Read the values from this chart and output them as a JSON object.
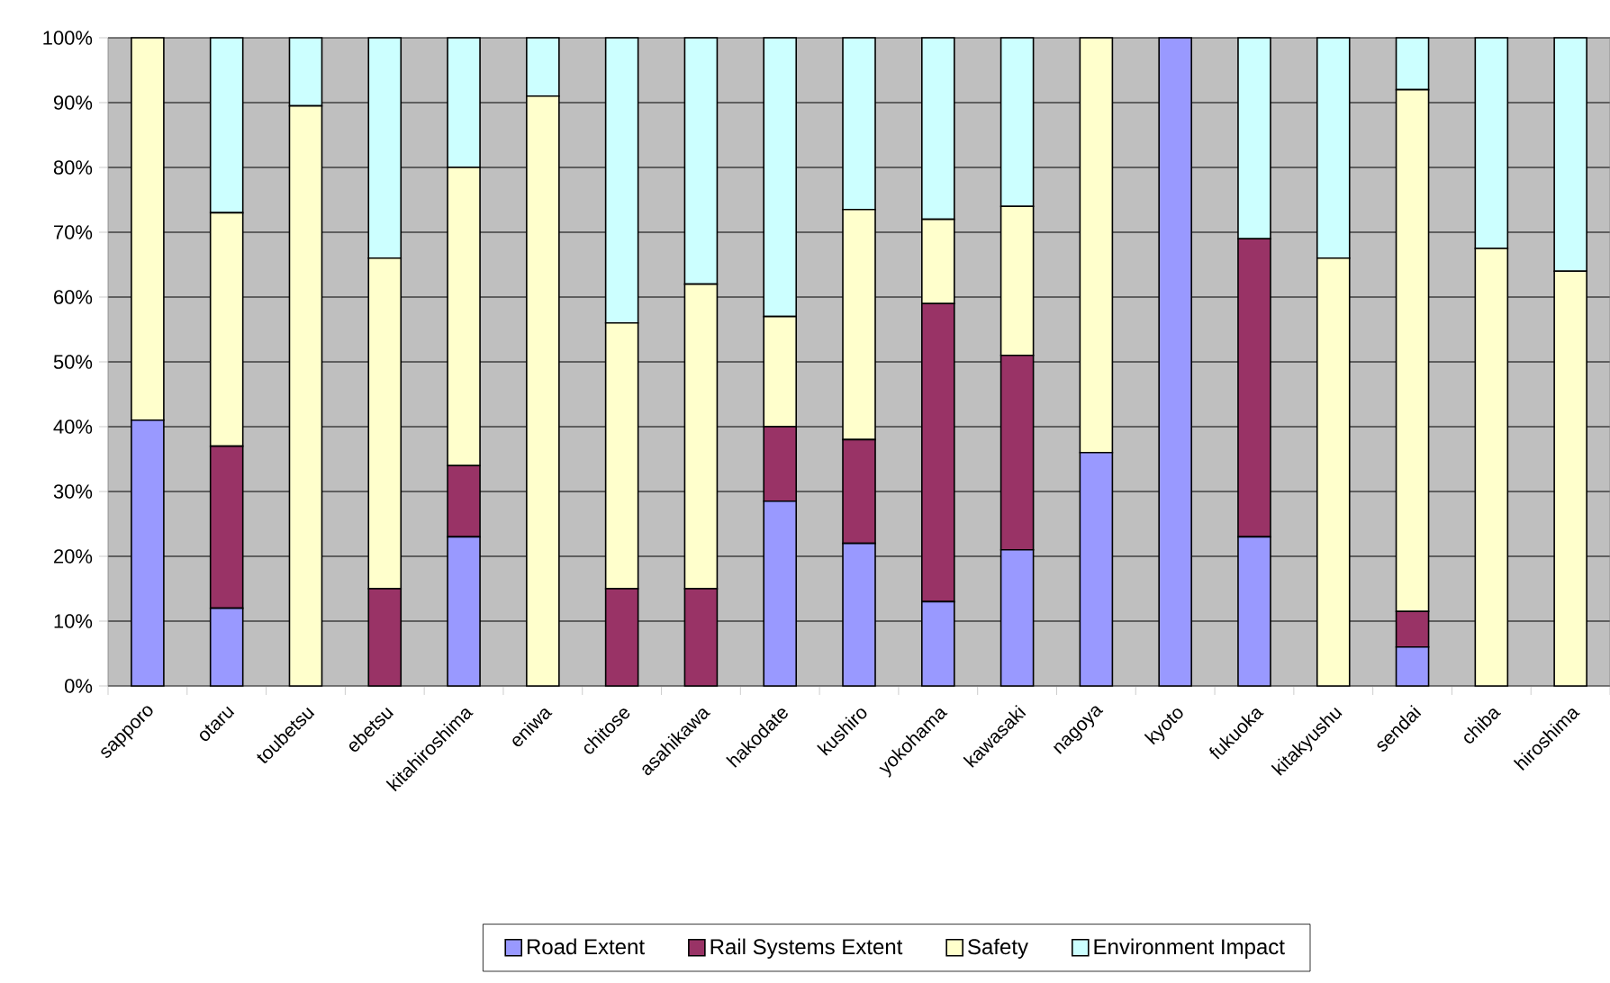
{
  "chart_data": {
    "type": "bar",
    "stacked": true,
    "categories": [
      "sapporo",
      "otaru",
      "toubetsu",
      "ebetsu",
      "kitahiroshima",
      "eniwa",
      "chitose",
      "asahikawa",
      "hakodate",
      "kushiro",
      "yokohama",
      "kawasaki",
      "nagoya",
      "kyoto",
      "fukuoka",
      "kitakyushu",
      "sendai",
      "chiba",
      "hiroshima"
    ],
    "series": [
      {
        "name": "Road Extent",
        "color": "#9999ff",
        "values": [
          41,
          12,
          0,
          0,
          23,
          0,
          0,
          0,
          28.5,
          22,
          13,
          21,
          36,
          100,
          23,
          0,
          6,
          0,
          0
        ]
      },
      {
        "name": "Rail Systems Extent",
        "color": "#993366",
        "values": [
          0,
          25,
          0,
          15,
          11,
          0,
          15,
          15,
          11.5,
          16,
          46,
          30,
          0,
          0,
          46,
          0,
          5.5,
          0,
          0
        ]
      },
      {
        "name": "Safety",
        "color": "#ffffcc",
        "values": [
          59,
          36,
          89.5,
          51,
          46,
          91,
          41,
          47,
          17,
          35.5,
          13,
          23,
          64,
          0,
          0,
          66,
          80.5,
          67.5,
          64
        ]
      },
      {
        "name": "Environment Impact",
        "color": "#ccffff",
        "values": [
          0,
          27,
          10.5,
          34,
          20,
          9,
          44,
          38,
          43,
          26.5,
          28,
          26,
          0,
          0,
          31,
          34,
          8,
          32.5,
          36
        ]
      }
    ],
    "ylim": [
      0,
      100
    ],
    "yticks": [
      {
        "value": 0,
        "label": "0%"
      },
      {
        "value": 10,
        "label": "10%"
      },
      {
        "value": 20,
        "label": "20%"
      },
      {
        "value": 30,
        "label": "30%"
      },
      {
        "value": 40,
        "label": "40%"
      },
      {
        "value": 50,
        "label": "50%"
      },
      {
        "value": 60,
        "label": "60%"
      },
      {
        "value": 70,
        "label": "70%"
      },
      {
        "value": 80,
        "label": "80%"
      },
      {
        "value": 90,
        "label": "90%"
      },
      {
        "value": 100,
        "label": "100%"
      }
    ],
    "grid": "y",
    "legend": "bottom"
  }
}
